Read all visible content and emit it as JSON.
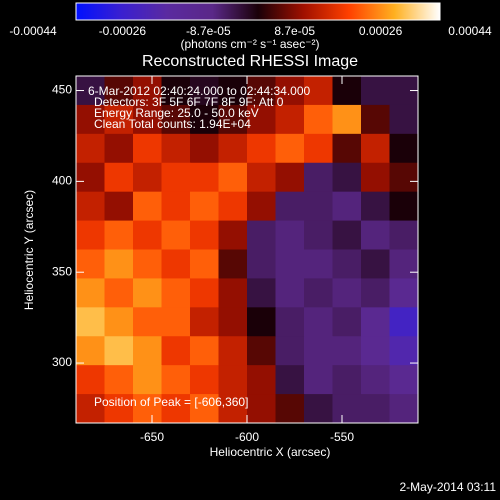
{
  "chart_data": {
    "type": "heatmap",
    "title": "Reconstructed RHESSI Image",
    "colorbar_label": "(photons cm⁻² s⁻¹ asec⁻²)",
    "xlabel": "Heliocentric X (arcsec)",
    "ylabel": "Heliocentric Y (arcsec)",
    "annotations": [
      "6-Mar-2012 02:40:24.000 to 02:44:34.000",
      "Detectors: 3F 5F 6F 7F 8F 9F; Att 0",
      "Energy Range: 25.0 - 50.0 keV",
      "Clean     Total counts: 1.94E+04"
    ],
    "peak_note": "Position of Peak = [-606,360]",
    "footer": "2-May-2014 03:11",
    "xlim": [
      -690,
      -510
    ],
    "ylim": [
      267,
      458
    ],
    "xticks": [
      -650,
      -600,
      -550
    ],
    "yticks": [
      300,
      350,
      400,
      450
    ],
    "clim": [
      -0.00044,
      0.00044
    ],
    "cticks": [
      -0.00044,
      -0.00026,
      {
        "value": -8.7e-05,
        "label": "-8.7e-05"
      },
      {
        "value": 8.7e-05,
        "label": "8.7e-05"
      },
      0.00026,
      0.00044
    ],
    "colorscale": [
      "#0010ff",
      "#3a20d0",
      "#5a2aa0",
      "#5a2888",
      "#1a0008",
      "#a01000",
      "#ff4000",
      "#ffb020",
      "#ffffff"
    ],
    "z": [
      [
        -5e-05,
        5e-05,
        0.0001,
        0,
        -2e-05,
        0,
        5e-05,
        0.0001,
        0.00015,
        0,
        -5e-05,
        -5e-05
      ],
      [
        0.0001,
        0.00015,
        0.0001,
        5e-05,
        0,
        5e-05,
        0.0001,
        0.00015,
        0.00025,
        0.0003,
        5e-05,
        -5e-05
      ],
      [
        0.00015,
        0.0001,
        0.0002,
        0.00015,
        0.0001,
        0.00015,
        0.0002,
        0.00025,
        0.0002,
        5e-05,
        0.00015,
        0
      ],
      [
        0.0001,
        0.0002,
        0.00015,
        0.0002,
        0.0002,
        0.00025,
        0.00015,
        0.0001,
        -8e-05,
        -5e-05,
        0.0001,
        5e-05
      ],
      [
        0.00015,
        0.0001,
        0.00025,
        0.0002,
        0.00025,
        0.0002,
        0.0001,
        -8e-05,
        -8e-05,
        -0.0001,
        -5e-05,
        0
      ],
      [
        0.0002,
        0.00025,
        0.0002,
        0.00025,
        0.0002,
        0.0001,
        -8e-05,
        -0.0001,
        -8e-05,
        -5e-05,
        -0.0001,
        -8e-05
      ],
      [
        0.00025,
        0.0003,
        0.00025,
        0.0002,
        0.00025,
        5e-05,
        -8e-05,
        -0.0001,
        -0.0001,
        -8e-05,
        -5e-05,
        -0.0001
      ],
      [
        0.0003,
        0.00025,
        0.0003,
        0.00025,
        0.0002,
        0.0001,
        -5e-05,
        -0.0001,
        -8e-05,
        -0.0001,
        -8e-05,
        -0.00015
      ],
      [
        0.00035,
        0.0003,
        0.00025,
        0.00025,
        0.00015,
        0.0001,
        0,
        -8e-05,
        -0.0001,
        -8e-05,
        -0.00015,
        -0.0003
      ],
      [
        0.0003,
        0.00035,
        0.0003,
        0.0002,
        0.00025,
        0.00015,
        5e-05,
        -8e-05,
        -0.0001,
        -0.0001,
        -0.00015,
        -0.00025
      ],
      [
        0.0002,
        0.00025,
        0.0003,
        0.00025,
        0.0002,
        0.00015,
        0.0001,
        -5e-05,
        -0.0001,
        -8e-05,
        -0.0001,
        -0.00015
      ],
      [
        0.00015,
        0.0002,
        0.00025,
        0.0002,
        0.00025,
        0.00015,
        0.0001,
        5e-05,
        -5e-05,
        -8e-05,
        -8e-05,
        -0.0001
      ]
    ]
  }
}
